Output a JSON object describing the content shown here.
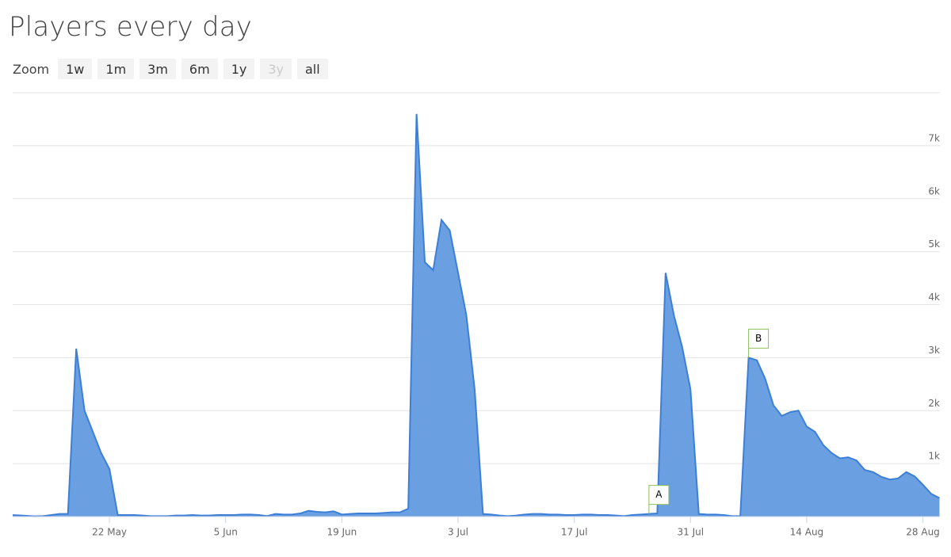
{
  "chart_data": {
    "type": "area",
    "title": "Players every day",
    "zoom": {
      "label": "Zoom",
      "buttons": [
        "1w",
        "1m",
        "3m",
        "6m",
        "1y",
        "3y",
        "all"
      ],
      "disabled": [
        "3y"
      ]
    },
    "x": [
      "10 May",
      "11 May",
      "12 May",
      "13 May",
      "14 May",
      "15 May",
      "16 May",
      "17 May",
      "18 May",
      "19 May",
      "20 May",
      "21 May",
      "22 May",
      "23 May",
      "24 May",
      "25 May",
      "26 May",
      "27 May",
      "28 May",
      "29 May",
      "30 May",
      "31 May",
      "1 Jun",
      "2 Jun",
      "3 Jun",
      "4 Jun",
      "5 Jun",
      "6 Jun",
      "7 Jun",
      "8 Jun",
      "9 Jun",
      "10 Jun",
      "11 Jun",
      "12 Jun",
      "13 Jun",
      "14 Jun",
      "15 Jun",
      "16 Jun",
      "17 Jun",
      "18 Jun",
      "19 Jun",
      "20 Jun",
      "21 Jun",
      "22 Jun",
      "23 Jun",
      "24 Jun",
      "25 Jun",
      "26 Jun",
      "27 Jun",
      "28 Jun",
      "29 Jun",
      "30 Jun",
      "1 Jul",
      "2 Jul",
      "3 Jul",
      "4 Jul",
      "5 Jul",
      "6 Jul",
      "7 Jul",
      "8 Jul",
      "9 Jul",
      "10 Jul",
      "11 Jul",
      "12 Jul",
      "13 Jul",
      "14 Jul",
      "15 Jul",
      "16 Jul",
      "17 Jul",
      "18 Jul",
      "19 Jul",
      "20 Jul",
      "21 Jul",
      "22 Jul",
      "23 Jul",
      "24 Jul",
      "25 Jul",
      "26 Jul",
      "27 Jul",
      "28 Jul",
      "29 Jul",
      "30 Jul",
      "31 Jul",
      "1 Aug",
      "2 Aug",
      "3 Aug",
      "4 Aug",
      "5 Aug",
      "6 Aug",
      "7 Aug",
      "8 Aug",
      "9 Aug",
      "10 Aug",
      "11 Aug",
      "12 Aug",
      "13 Aug",
      "14 Aug",
      "15 Aug",
      "16 Aug",
      "17 Aug",
      "18 Aug",
      "19 Aug",
      "20 Aug",
      "21 Aug",
      "22 Aug",
      "23 Aug",
      "24 Aug",
      "25 Aug",
      "26 Aug",
      "27 Aug",
      "28 Aug",
      "29 Aug",
      "30 Aug"
    ],
    "series": [
      {
        "name": "Players",
        "color": "#6a9fe2",
        "values": [
          30,
          25,
          15,
          5,
          10,
          30,
          50,
          50,
          3170,
          2000,
          1600,
          1200,
          900,
          30,
          30,
          30,
          20,
          10,
          10,
          10,
          20,
          20,
          30,
          20,
          20,
          30,
          30,
          30,
          40,
          40,
          30,
          10,
          50,
          40,
          40,
          60,
          110,
          90,
          80,
          100,
          40,
          50,
          60,
          60,
          60,
          70,
          80,
          80,
          150,
          7600,
          4800,
          4650,
          5600,
          5400,
          4600,
          3800,
          2400,
          50,
          40,
          20,
          10,
          20,
          40,
          50,
          50,
          40,
          40,
          30,
          30,
          40,
          40,
          30,
          30,
          20,
          10,
          30,
          40,
          50,
          60,
          4600,
          3800,
          3200,
          2400,
          50,
          40,
          40,
          30,
          10,
          10,
          3000,
          2950,
          2600,
          2100,
          1900,
          1970,
          2000,
          1700,
          1600,
          1350,
          1200,
          1100,
          1120,
          1060,
          880,
          840,
          750,
          700,
          720,
          840,
          760,
          600,
          430,
          350
        ]
      }
    ],
    "xticks": [
      "22 May",
      "5 Jun",
      "19 Jun",
      "3 Jul",
      "17 Jul",
      "31 Jul",
      "14 Aug",
      "28 Aug"
    ],
    "ylim": [
      0,
      8000
    ],
    "yticks": [
      0,
      {
        "value": 1000,
        "label": "1k"
      },
      {
        "value": 2000,
        "label": "2k"
      },
      {
        "value": 3000,
        "label": "3k"
      },
      {
        "value": 4000,
        "label": "4k"
      },
      {
        "value": 5000,
        "label": "5k"
      },
      {
        "value": 6000,
        "label": "6k"
      },
      {
        "value": 7000,
        "label": "7k"
      }
    ],
    "grid": true,
    "annotations": [
      {
        "label": "A",
        "x": "26 Jul"
      },
      {
        "label": "B",
        "x": "7 Aug"
      }
    ]
  }
}
